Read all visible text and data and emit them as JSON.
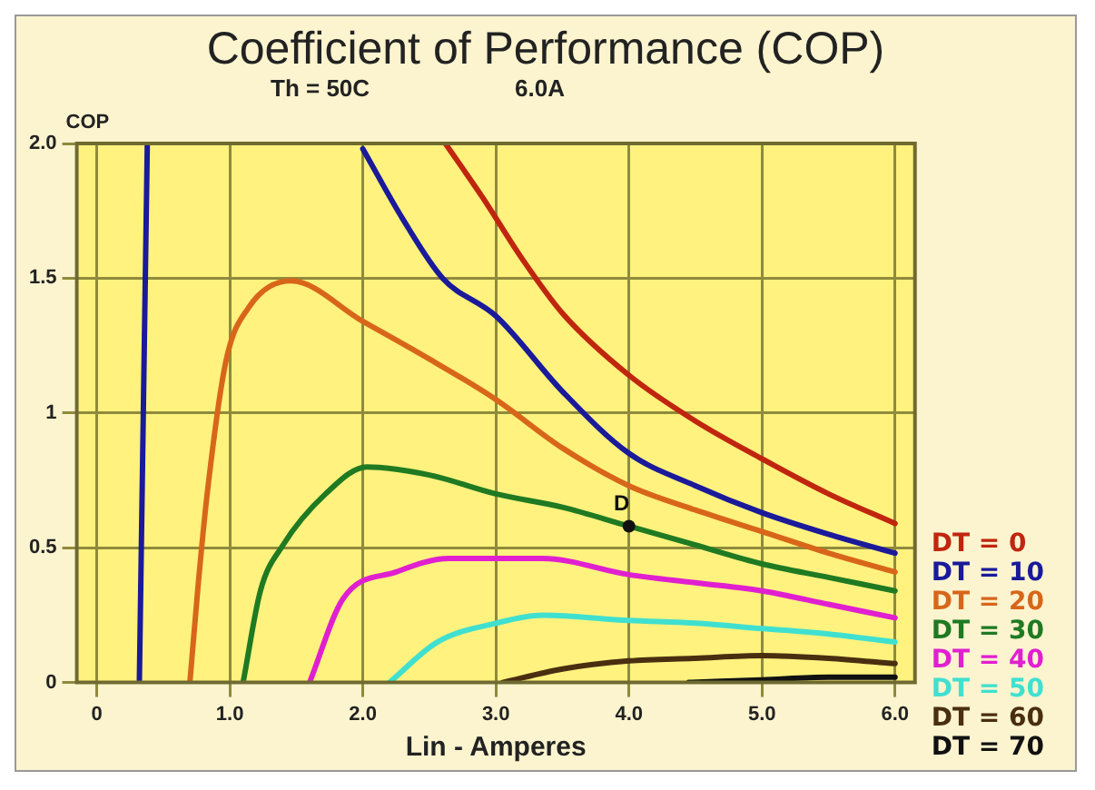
{
  "chart_data": {
    "type": "line",
    "title": "Coefficient of Performance (COP)",
    "subtitle": "Th = 50C",
    "xlabel": "Lin - Amperes",
    "ylabel": "COP",
    "annotations": [
      "6.0A",
      {
        "text": "D",
        "x": 4.0,
        "y": 0.58
      }
    ],
    "xlim": [
      -0.15,
      6.15
    ],
    "ylim": [
      0,
      2.0
    ],
    "xticks": [
      0,
      {
        "value": 1,
        "label": "1.0"
      },
      {
        "value": 2,
        "label": "2.0"
      },
      {
        "value": 3,
        "label": "3.0"
      },
      {
        "value": 4,
        "label": "4.0"
      },
      {
        "value": 5,
        "label": "5.0"
      },
      {
        "value": 6,
        "label": "6.0"
      }
    ],
    "yticks": [
      0,
      0.5,
      1,
      1.5,
      {
        "value": 2,
        "label": "2.0"
      }
    ],
    "grid": true,
    "legend": "right",
    "marker": "none",
    "line_style": "solid",
    "series": [
      {
        "name": "DT = 0",
        "color": "#c0260f",
        "x": [
          2.62,
          2.9,
          3.2,
          3.5,
          4.0,
          4.5,
          5.0,
          5.5,
          6.0
        ],
        "values": [
          2.0,
          1.8,
          1.57,
          1.37,
          1.14,
          0.97,
          0.83,
          0.7,
          0.59
        ]
      },
      {
        "name": "DT = 10",
        "color": "#1a1a9a",
        "x": [
          0.32,
          0.38,
          null,
          2.0,
          2.3,
          2.6,
          3.0,
          3.5,
          4.0,
          4.5,
          5.0,
          5.5,
          6.0
        ],
        "values": [
          0,
          2.0,
          null,
          1.98,
          1.72,
          1.5,
          1.36,
          1.08,
          0.85,
          0.73,
          0.63,
          0.55,
          0.48
        ]
      },
      {
        "name": "DT = 20",
        "color": "#d8661a",
        "x": [
          0.7,
          0.76,
          0.83,
          0.97,
          1.14,
          1.46,
          2.0,
          2.5,
          3.0,
          3.5,
          4.0,
          4.5,
          5.0,
          5.5,
          6.0
        ],
        "values": [
          0,
          0.35,
          0.7,
          1.19,
          1.39,
          1.49,
          1.34,
          1.2,
          1.05,
          0.87,
          0.73,
          0.64,
          0.56,
          0.48,
          0.41
        ]
      },
      {
        "name": "DT = 30",
        "color": "#1f7a22",
        "x": [
          1.1,
          1.23,
          1.4,
          1.72,
          2.03,
          2.5,
          3.0,
          3.5,
          4.0,
          4.5,
          5.0,
          5.5,
          6.0
        ],
        "values": [
          0,
          0.34,
          0.51,
          0.7,
          0.8,
          0.77,
          0.7,
          0.65,
          0.58,
          0.51,
          0.44,
          0.39,
          0.34
        ]
      },
      {
        "name": "DT = 40",
        "color": "#e020d0",
        "x": [
          1.6,
          1.85,
          2.25,
          2.65,
          3.0,
          3.35,
          4.0,
          4.5,
          5.0,
          5.5,
          6.0
        ],
        "values": [
          0,
          0.31,
          0.41,
          0.46,
          0.46,
          0.46,
          0.4,
          0.37,
          0.34,
          0.29,
          0.24
        ]
      },
      {
        "name": "DT = 50",
        "color": "#40e0d0",
        "x": [
          2.2,
          2.56,
          3.0,
          3.35,
          4.0,
          4.5,
          5.0,
          5.5,
          6.0
        ],
        "values": [
          0,
          0.15,
          0.22,
          0.25,
          0.23,
          0.22,
          0.2,
          0.18,
          0.15
        ]
      },
      {
        "name": "DT = 60",
        "color": "#4a2e10",
        "x": [
          3.05,
          3.5,
          4.0,
          4.5,
          5.0,
          5.5,
          6.0
        ],
        "values": [
          0,
          0.05,
          0.08,
          0.09,
          0.1,
          0.09,
          0.07
        ]
      },
      {
        "name": "DT = 70",
        "color": "#111111",
        "x": [
          4.45,
          5.0,
          5.5,
          6.0
        ],
        "values": [
          0,
          0.01,
          0.02,
          0.02
        ]
      }
    ]
  }
}
